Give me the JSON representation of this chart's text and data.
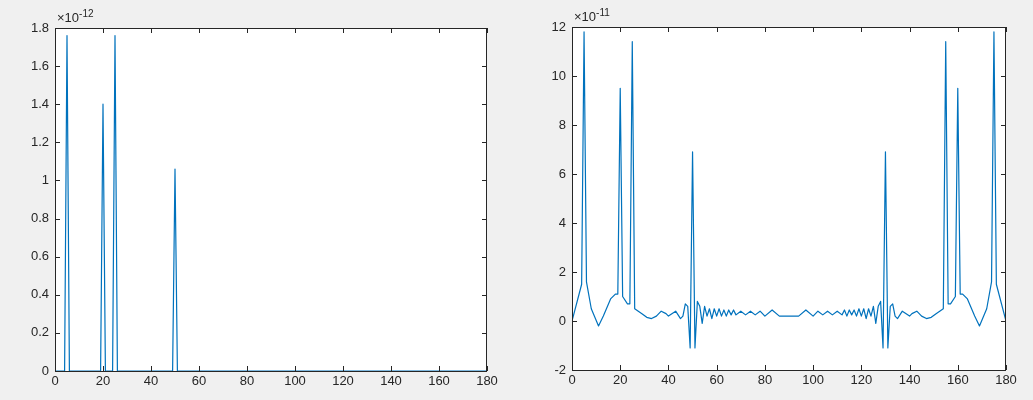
{
  "chart_data": [
    {
      "type": "line",
      "x": [
        0,
        4,
        5,
        6,
        19,
        20,
        21,
        24,
        25,
        26,
        49,
        50,
        51,
        180
      ],
      "series": [
        {
          "color": "#0072bd",
          "values": [
            0,
            0,
            1.76,
            0,
            0,
            1.4,
            0,
            0,
            1.76,
            0,
            0,
            1.06,
            0,
            0
          ]
        }
      ],
      "xlim": [
        0,
        180
      ],
      "xticks": [
        0,
        20,
        40,
        60,
        80,
        100,
        120,
        140,
        160,
        180
      ],
      "ylim": [
        0,
        1.8
      ],
      "yticks": [
        0,
        0.2,
        0.4,
        0.6,
        0.8,
        1,
        1.2,
        1.4,
        1.6,
        1.8
      ],
      "annotations": [
        "×10$^{-12}$"
      ],
      "marker": "none",
      "grid": false,
      "legend": false
    },
    {
      "type": "line",
      "x": [
        0,
        4,
        5,
        6,
        8,
        11,
        13,
        16,
        18,
        19,
        20,
        21,
        23,
        24,
        25,
        26,
        29,
        31,
        33,
        35,
        37,
        39,
        40,
        43,
        45,
        46,
        47,
        48,
        49,
        50,
        51,
        52,
        53,
        54,
        55,
        56,
        57,
        58,
        59,
        60,
        61,
        62,
        63,
        64,
        65,
        66,
        67,
        68,
        70,
        72,
        74,
        76,
        78,
        80,
        83,
        86,
        90,
        94,
        97,
        100,
        102,
        104,
        106,
        108,
        110,
        112,
        113,
        114,
        115,
        116,
        117,
        118,
        119,
        120,
        121,
        122,
        123,
        124,
        125,
        126,
        127,
        128,
        129,
        130,
        131,
        132,
        133,
        134,
        135,
        137,
        140,
        141,
        143,
        145,
        147,
        149,
        151,
        154,
        155,
        156,
        157,
        159,
        160,
        161,
        162,
        164,
        167,
        169,
        172,
        174,
        175,
        176,
        180
      ],
      "series": [
        {
          "color": "#0072bd",
          "values": [
            0,
            1.5,
            11.8,
            1.6,
            0.5,
            -0.2,
            0.2,
            0.9,
            1.1,
            1.1,
            9.5,
            1,
            0.7,
            0.7,
            11.4,
            0.5,
            0.3,
            0.15,
            0.1,
            0.2,
            0.4,
            0.3,
            0.2,
            0.4,
            0.1,
            0.2,
            0.7,
            0.6,
            -1.1,
            6.9,
            -1.1,
            0.8,
            0.6,
            -0.1,
            0.6,
            0.2,
            0.5,
            0.1,
            0.5,
            0.2,
            0.5,
            0.2,
            0.45,
            0.2,
            0.45,
            0.25,
            0.45,
            0.25,
            0.4,
            0.25,
            0.4,
            0.25,
            0.4,
            0.2,
            0.45,
            0.2,
            0.2,
            0.2,
            0.45,
            0.2,
            0.4,
            0.25,
            0.4,
            0.25,
            0.4,
            0.25,
            0.45,
            0.2,
            0.45,
            0.25,
            0.45,
            0.2,
            0.5,
            0.2,
            0.5,
            0.1,
            0.5,
            0.2,
            0.6,
            -0.1,
            0.6,
            0.8,
            -1.1,
            6.9,
            -1.1,
            0.6,
            0.7,
            0.2,
            0.1,
            0.4,
            0.2,
            0.3,
            0.4,
            0.2,
            0.1,
            0.15,
            0.3,
            0.5,
            11.4,
            0.7,
            0.7,
            1,
            9.5,
            1.1,
            1.1,
            0.9,
            0.2,
            -0.2,
            0.5,
            1.6,
            11.8,
            1.5,
            0
          ]
        }
      ],
      "xlim": [
        0,
        180
      ],
      "xticks": [
        0,
        20,
        40,
        60,
        80,
        100,
        120,
        140,
        160,
        180
      ],
      "ylim": [
        -2,
        12
      ],
      "yticks": [
        -2,
        0,
        2,
        4,
        6,
        8,
        10,
        12
      ],
      "annotations": [
        "×10$^{-11}$"
      ],
      "marker": "none",
      "grid": false,
      "legend": false
    }
  ]
}
